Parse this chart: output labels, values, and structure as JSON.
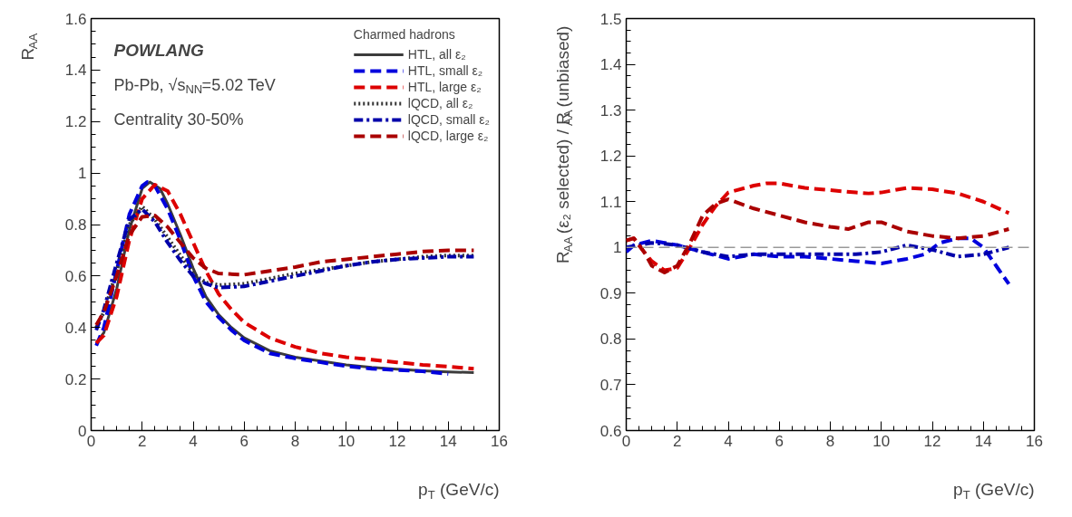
{
  "chart_data": [
    {
      "type": "line",
      "xlabel": "p$_{T}$ (GeV/c)",
      "ylabel": "R$_{AA}$",
      "legend_title": "Charmed hadrons",
      "legend": "top right",
      "grid": false,
      "xlim": [
        0,
        16
      ],
      "xticks": [
        0,
        2,
        4,
        6,
        8,
        10,
        12,
        14,
        16
      ],
      "ylim": [
        0,
        1.6
      ],
      "yticks": [
        0,
        0.2,
        0.4,
        0.6,
        0.8,
        1,
        1.2,
        1.4,
        1.6
      ],
      "annotations": [
        "POWLANG",
        "Pb-Pb, √s$_{NN}$=5.02 TeV",
        "Centrality 30-50%"
      ],
      "series": [
        {
          "name": "HTL, all ε₂",
          "color": "#3c3c3c",
          "line_style": "solid",
          "x": [
            0.2,
            0.5,
            1,
            1.5,
            2,
            2.3,
            2.7,
            3,
            3.5,
            4,
            4.5,
            5,
            5.5,
            6,
            7,
            8,
            9,
            10,
            11,
            12,
            13,
            14,
            15
          ],
          "values": [
            0.34,
            0.38,
            0.55,
            0.78,
            0.94,
            0.965,
            0.94,
            0.88,
            0.76,
            0.63,
            0.52,
            0.45,
            0.4,
            0.36,
            0.31,
            0.285,
            0.27,
            0.255,
            0.245,
            0.238,
            0.232,
            0.228,
            0.225
          ]
        },
        {
          "name": "HTL, small ε₂",
          "color": "#0000dd",
          "line_style": "dashed",
          "x": [
            0.2,
            0.5,
            1,
            1.5,
            2,
            2.2,
            2.5,
            3,
            3.5,
            4,
            4.5,
            5,
            5.5,
            6,
            7,
            8,
            9,
            10,
            11,
            12,
            13,
            14
          ],
          "values": [
            0.33,
            0.4,
            0.62,
            0.84,
            0.95,
            0.965,
            0.95,
            0.86,
            0.74,
            0.6,
            0.5,
            0.44,
            0.39,
            0.35,
            0.3,
            0.28,
            0.265,
            0.25,
            0.24,
            0.235,
            0.23,
            0.22
          ]
        },
        {
          "name": "HTL, large ε₂",
          "color": "#dd0000",
          "line_style": "dashed",
          "x": [
            0.2,
            0.5,
            1,
            1.5,
            2,
            2.5,
            3,
            3.5,
            4,
            4.5,
            5,
            5.5,
            6,
            7,
            8,
            9,
            10,
            11,
            12,
            13,
            14,
            15
          ],
          "values": [
            0.34,
            0.37,
            0.52,
            0.74,
            0.9,
            0.955,
            0.93,
            0.84,
            0.73,
            0.62,
            0.53,
            0.47,
            0.42,
            0.36,
            0.325,
            0.3,
            0.285,
            0.275,
            0.265,
            0.255,
            0.248,
            0.24
          ]
        },
        {
          "name": "lQCD, all ε₂",
          "color": "#333333",
          "line_style": "dotted",
          "x": [
            0.2,
            0.5,
            1,
            1.5,
            2,
            2.5,
            3,
            3.5,
            4,
            4.5,
            5,
            6,
            7,
            8,
            9,
            10,
            11,
            12,
            13,
            14,
            15
          ],
          "values": [
            0.4,
            0.46,
            0.62,
            0.8,
            0.87,
            0.82,
            0.75,
            0.68,
            0.61,
            0.575,
            0.565,
            0.57,
            0.59,
            0.61,
            0.625,
            0.64,
            0.655,
            0.665,
            0.675,
            0.68,
            0.68
          ]
        },
        {
          "name": "lQCD, small ε₂",
          "color": "#0000aa",
          "line_style": "dashdot",
          "x": [
            0.2,
            0.5,
            1,
            1.5,
            2,
            2.5,
            3,
            3.5,
            4,
            4.5,
            5,
            6,
            7,
            8,
            9,
            10,
            11,
            12,
            13,
            14,
            15
          ],
          "values": [
            0.39,
            0.47,
            0.65,
            0.82,
            0.86,
            0.81,
            0.73,
            0.66,
            0.6,
            0.57,
            0.555,
            0.56,
            0.58,
            0.6,
            0.62,
            0.64,
            0.655,
            0.665,
            0.67,
            0.675,
            0.675
          ]
        },
        {
          "name": "lQCD, large ε₂",
          "color": "#aa0000",
          "line_style": "dashed",
          "x": [
            0.2,
            0.5,
            1,
            1.5,
            2,
            2.5,
            3,
            3.5,
            4,
            4.5,
            5,
            6,
            7,
            8,
            9,
            10,
            11,
            12,
            13,
            14,
            15
          ],
          "values": [
            0.41,
            0.46,
            0.6,
            0.76,
            0.83,
            0.835,
            0.79,
            0.73,
            0.67,
            0.63,
            0.61,
            0.605,
            0.62,
            0.635,
            0.655,
            0.665,
            0.675,
            0.685,
            0.695,
            0.7,
            0.7
          ]
        }
      ]
    },
    {
      "type": "line",
      "xlabel": "p$_{T}$ (GeV/c)",
      "ylabel": "R$_{AA}$ (ε₂ selected) / R$_{AA}$ (unbiased)",
      "grid": false,
      "legend": false,
      "xlim": [
        0,
        16
      ],
      "xticks": [
        0,
        2,
        4,
        6,
        8,
        10,
        12,
        14,
        16
      ],
      "ylim": [
        0.6,
        1.5
      ],
      "yticks": [
        0.6,
        0.7,
        0.8,
        0.9,
        1,
        1.1,
        1.2,
        1.3,
        1.4,
        1.5
      ],
      "ref_lines": [
        {
          "axis": "y",
          "value": 1,
          "color": "#999999",
          "line_style": "dashed"
        }
      ],
      "series": [
        {
          "color": "#0000dd",
          "line_style": "dashed",
          "x": [
            0,
            0.3,
            1,
            1.5,
            2,
            3,
            4,
            5,
            6,
            7,
            8,
            9,
            10,
            11,
            11.7,
            12.3,
            13,
            13.5,
            14,
            14.5,
            15
          ],
          "values": [
            0.99,
            1.005,
            1.015,
            1.01,
            1.005,
            0.99,
            0.975,
            0.985,
            0.98,
            0.98,
            0.975,
            0.97,
            0.965,
            0.975,
            0.985,
            1.01,
            1.02,
            1.02,
            1.0,
            0.96,
            0.92
          ]
        },
        {
          "color": "#dd0000",
          "line_style": "dashed",
          "x": [
            0,
            0.3,
            0.7,
            1,
            1.5,
            2,
            2.5,
            3,
            3.5,
            4,
            5,
            5.5,
            6,
            7,
            8,
            9,
            9.5,
            10,
            11,
            12,
            13,
            14,
            15
          ],
          "values": [
            1.015,
            1.02,
            0.99,
            0.97,
            0.95,
            0.955,
            1.0,
            1.05,
            1.09,
            1.12,
            1.135,
            1.14,
            1.14,
            1.13,
            1.125,
            1.12,
            1.118,
            1.12,
            1.13,
            1.127,
            1.118,
            1.1,
            1.075
          ]
        },
        {
          "color": "#0000aa",
          "line_style": "dashdot",
          "x": [
            0,
            0.5,
            1,
            1.5,
            2,
            3,
            4,
            5,
            6,
            7,
            8,
            9,
            10,
            11,
            12,
            13,
            14,
            15
          ],
          "values": [
            1.0,
            1.005,
            1.01,
            1.008,
            1.005,
            0.99,
            0.98,
            0.985,
            0.985,
            0.985,
            0.985,
            0.985,
            0.99,
            1.005,
            0.995,
            0.98,
            0.985,
            1.0
          ]
        },
        {
          "color": "#aa0000",
          "line_style": "dashed",
          "x": [
            0,
            0.3,
            0.7,
            1,
            1.5,
            2,
            2.5,
            3,
            3.5,
            4,
            5,
            6,
            7,
            8,
            8.7,
            9.5,
            10,
            11,
            12,
            13,
            14,
            15
          ],
          "values": [
            1.015,
            1.02,
            0.99,
            0.96,
            0.945,
            0.96,
            1.01,
            1.07,
            1.095,
            1.105,
            1.085,
            1.07,
            1.055,
            1.045,
            1.04,
            1.055,
            1.055,
            1.035,
            1.025,
            1.02,
            1.025,
            1.04
          ]
        }
      ]
    }
  ]
}
